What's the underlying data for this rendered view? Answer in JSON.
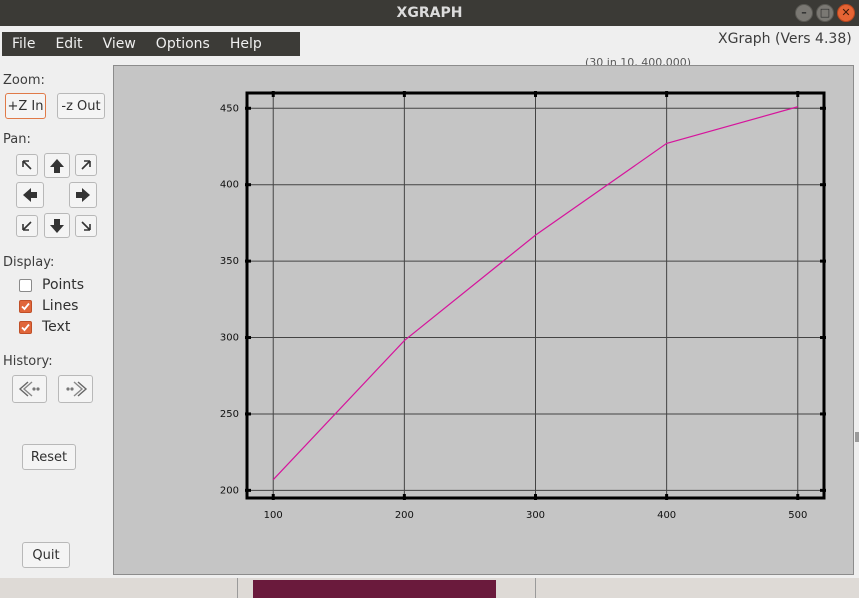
{
  "window": {
    "title": "XGRAPH",
    "version": "XGraph (Vers 4.38)",
    "ghost_text": "(30 in 10, 400,000)"
  },
  "menu": [
    "File",
    "Edit",
    "View",
    "Options",
    "Help"
  ],
  "panel": {
    "zoom_label": "Zoom:",
    "zoom_in": "+Z In",
    "zoom_out": "-z Out",
    "pan_label": "Pan:",
    "display_label": "Display:",
    "options": [
      {
        "label": "Points",
        "checked": false
      },
      {
        "label": "Lines",
        "checked": true
      },
      {
        "label": "Text",
        "checked": true
      }
    ],
    "history_label": "History:",
    "reset": "Reset",
    "quit": "Quit"
  },
  "chart_data": {
    "type": "line",
    "title": "",
    "xlabel": "",
    "ylabel": "",
    "xlim": [
      80,
      520
    ],
    "ylim": [
      195,
      460
    ],
    "x_ticks": [
      100,
      200,
      300,
      400,
      500
    ],
    "y_ticks": [
      200,
      250,
      300,
      350,
      400,
      450
    ],
    "grid": true,
    "series": [
      {
        "x": [
          100,
          200,
          300,
          400,
          500
        ],
        "y": [
          207,
          298,
          367,
          427,
          451
        ],
        "color": "#d6149c"
      }
    ]
  }
}
